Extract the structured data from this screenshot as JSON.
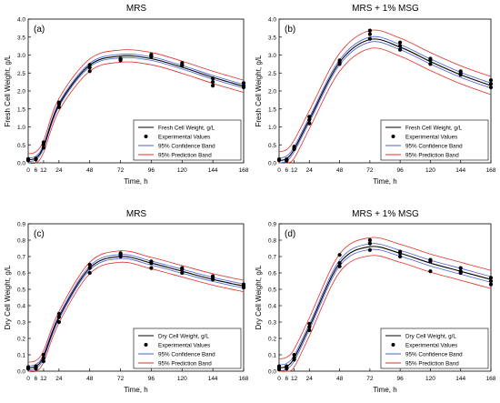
{
  "chart_data": [
    {
      "type": "line",
      "title": "MRS",
      "panel_label": "(a)",
      "xlabel": "Time, h",
      "ylabel": "Fresh Cell Weight, g/L",
      "xticks": [
        0,
        6,
        12,
        24,
        48,
        72,
        96,
        120,
        144,
        168
      ],
      "yticks": [
        "0.0",
        "0.5",
        "1.0",
        "1.5",
        "2.0",
        "2.5",
        "3.0",
        "3.5",
        "4.0"
      ],
      "xlim": [
        0,
        168
      ],
      "ylim": [
        0,
        4.0
      ],
      "legend_position": "bottom-right",
      "legend": [
        "Fresh Cell Weight, g/L",
        "Experimental Values",
        "95% Confidence Band",
        "95% Prediction Band"
      ],
      "x": [
        0,
        6,
        12,
        24,
        48,
        72,
        96,
        120,
        144,
        168
      ],
      "fit": [
        0.08,
        0.14,
        0.45,
        1.62,
        2.72,
        2.97,
        2.9,
        2.66,
        2.38,
        2.13
      ],
      "confidence_halfwidth": 0.05,
      "prediction_halfwidth": 0.17,
      "experimental": [
        [
          0,
          0.07
        ],
        [
          0,
          0.09
        ],
        [
          0,
          0.11
        ],
        [
          6,
          0.1
        ],
        [
          6,
          0.1
        ],
        [
          6,
          0.12
        ],
        [
          12,
          0.42
        ],
        [
          12,
          0.5
        ],
        [
          12,
          0.57
        ],
        [
          24,
          1.55
        ],
        [
          24,
          1.63
        ],
        [
          24,
          1.68
        ],
        [
          48,
          2.55
        ],
        [
          48,
          2.65
        ],
        [
          48,
          2.73
        ],
        [
          72,
          2.85
        ],
        [
          72,
          2.88
        ],
        [
          72,
          2.9
        ],
        [
          96,
          2.95
        ],
        [
          96,
          2.98
        ],
        [
          96,
          3.01
        ],
        [
          120,
          2.7
        ],
        [
          120,
          2.73
        ],
        [
          120,
          2.78
        ],
        [
          144,
          2.15
        ],
        [
          144,
          2.25
        ],
        [
          144,
          2.35
        ],
        [
          168,
          2.1
        ],
        [
          168,
          2.15
        ],
        [
          168,
          2.22
        ]
      ]
    },
    {
      "type": "line",
      "title": "MRS + 1% MSG",
      "panel_label": "(b)",
      "xlabel": "Time, h",
      "ylabel": "Fresh Cell Weight, g/L",
      "xticks": [
        0,
        6,
        12,
        24,
        48,
        72,
        96,
        120,
        144,
        168
      ],
      "yticks": [
        "0.0",
        "0.5",
        "1.0",
        "1.5",
        "2.0",
        "2.5",
        "3.0",
        "3.5",
        "4.0"
      ],
      "xlim": [
        0,
        168
      ],
      "ylim": [
        0,
        4.0
      ],
      "legend_position": "bottom-right",
      "legend": [
        "Fresh Cell Weight, g/L",
        "Experimental Values",
        "95% Confidence Band",
        "95% Prediction Band"
      ],
      "x": [
        0,
        6,
        12,
        24,
        48,
        72,
        96,
        120,
        144,
        168
      ],
      "fit": [
        0.06,
        0.12,
        0.38,
        1.2,
        2.8,
        3.43,
        3.22,
        2.82,
        2.45,
        2.15
      ],
      "confidence_halfwidth": 0.07,
      "prediction_halfwidth": 0.25,
      "experimental": [
        [
          0,
          0.07
        ],
        [
          0,
          0.08
        ],
        [
          0,
          0.1
        ],
        [
          6,
          0.06
        ],
        [
          6,
          0.08
        ],
        [
          6,
          0.1
        ],
        [
          12,
          0.38
        ],
        [
          12,
          0.42
        ],
        [
          12,
          0.45
        ],
        [
          24,
          1.1
        ],
        [
          24,
          1.2
        ],
        [
          24,
          1.28
        ],
        [
          48,
          2.75
        ],
        [
          48,
          2.8
        ],
        [
          48,
          2.85
        ],
        [
          72,
          3.45
        ],
        [
          72,
          3.58
        ],
        [
          72,
          3.68
        ],
        [
          96,
          3.15
        ],
        [
          96,
          3.25
        ],
        [
          96,
          3.35
        ],
        [
          120,
          2.75
        ],
        [
          120,
          2.85
        ],
        [
          120,
          2.9
        ],
        [
          144,
          2.45
        ],
        [
          144,
          2.5
        ],
        [
          144,
          2.55
        ],
        [
          168,
          2.1
        ],
        [
          168,
          2.2
        ],
        [
          168,
          2.3
        ]
      ]
    },
    {
      "type": "line",
      "title": "MRS",
      "panel_label": "(c)",
      "xlabel": "Time, h",
      "ylabel": "Dry Cell Weight, g/L",
      "xticks": [
        0,
        6,
        12,
        24,
        48,
        72,
        96,
        120,
        144,
        168
      ],
      "yticks": [
        "0.0",
        "0.1",
        "0.2",
        "0.3",
        "0.4",
        "0.5",
        "0.6",
        "0.7",
        "0.8",
        "0.9"
      ],
      "xlim": [
        0,
        168
      ],
      "ylim": [
        0,
        0.9
      ],
      "legend_position": "bottom-right",
      "legend": [
        "Dry Cell Weight, g/L",
        "Experimental Values",
        "95% Confidence Band",
        "95% Prediction Band"
      ],
      "x": [
        0,
        6,
        12,
        24,
        48,
        72,
        96,
        120,
        144,
        168
      ],
      "fit": [
        0.02,
        0.03,
        0.09,
        0.33,
        0.63,
        0.7,
        0.66,
        0.61,
        0.56,
        0.52
      ],
      "confidence_halfwidth": 0.012,
      "prediction_halfwidth": 0.035,
      "experimental": [
        [
          0,
          0.015
        ],
        [
          0,
          0.02
        ],
        [
          0,
          0.025
        ],
        [
          6,
          0.015
        ],
        [
          6,
          0.02
        ],
        [
          6,
          0.03
        ],
        [
          12,
          0.06
        ],
        [
          12,
          0.08
        ],
        [
          12,
          0.1
        ],
        [
          24,
          0.3
        ],
        [
          24,
          0.33
        ],
        [
          24,
          0.35
        ],
        [
          48,
          0.6
        ],
        [
          48,
          0.63
        ],
        [
          48,
          0.65
        ],
        [
          72,
          0.7
        ],
        [
          72,
          0.71
        ],
        [
          72,
          0.72
        ],
        [
          96,
          0.63
        ],
        [
          96,
          0.66
        ],
        [
          96,
          0.67
        ],
        [
          120,
          0.6
        ],
        [
          120,
          0.62
        ],
        [
          120,
          0.63
        ],
        [
          144,
          0.56
        ],
        [
          144,
          0.57
        ],
        [
          144,
          0.58
        ],
        [
          168,
          0.51
        ],
        [
          168,
          0.52
        ],
        [
          168,
          0.53
        ]
      ]
    },
    {
      "type": "line",
      "title": "MRS + 1% MSG",
      "panel_label": "(d)",
      "xlabel": "Time, h",
      "ylabel": "Dry Cell Weight, g/L",
      "xticks": [
        0,
        6,
        12,
        24,
        48,
        72,
        96,
        120,
        144,
        168
      ],
      "yticks": [
        "0.0",
        "0.1",
        "0.2",
        "0.3",
        "0.4",
        "0.5",
        "0.6",
        "0.7",
        "0.8",
        "0.9"
      ],
      "xlim": [
        0,
        168
      ],
      "ylim": [
        0,
        0.9
      ],
      "legend_position": "bottom-right",
      "legend": [
        "Dry Cell Weight, g/L",
        "Experimental Values",
        "95% Confidence Band",
        "95% Prediction Band"
      ],
      "x": [
        0,
        6,
        12,
        24,
        48,
        72,
        96,
        120,
        144,
        168
      ],
      "fit": [
        0.02,
        0.03,
        0.08,
        0.27,
        0.66,
        0.76,
        0.72,
        0.66,
        0.61,
        0.56
      ],
      "confidence_halfwidth": 0.018,
      "prediction_halfwidth": 0.055,
      "experimental": [
        [
          0,
          0.01
        ],
        [
          0,
          0.02
        ],
        [
          0,
          0.03
        ],
        [
          6,
          0.015
        ],
        [
          6,
          0.02
        ],
        [
          6,
          0.03
        ],
        [
          12,
          0.07
        ],
        [
          12,
          0.08
        ],
        [
          12,
          0.1
        ],
        [
          24,
          0.25
        ],
        [
          24,
          0.27
        ],
        [
          24,
          0.29
        ],
        [
          48,
          0.64
        ],
        [
          48,
          0.66
        ],
        [
          48,
          0.71
        ],
        [
          72,
          0.74
        ],
        [
          72,
          0.78
        ],
        [
          72,
          0.8
        ],
        [
          96,
          0.7
        ],
        [
          96,
          0.72
        ],
        [
          96,
          0.73
        ],
        [
          120,
          0.61
        ],
        [
          120,
          0.67
        ],
        [
          120,
          0.68
        ],
        [
          144,
          0.6
        ],
        [
          144,
          0.61
        ],
        [
          144,
          0.63
        ],
        [
          168,
          0.53
        ],
        [
          168,
          0.55
        ],
        [
          168,
          0.57
        ]
      ]
    }
  ],
  "colors": {
    "fit": "#000000",
    "experimental": "#000000",
    "confidence": "#4a5fd4",
    "prediction": "#e0302a"
  }
}
